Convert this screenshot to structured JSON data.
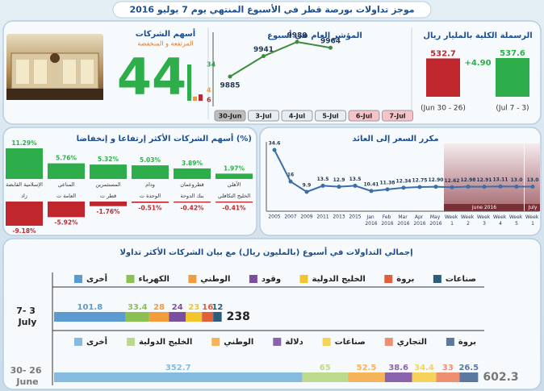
{
  "title": "موجز تداولات بورصة قطر في الأسبوع المنتهي يوم 7 يوليو 2016",
  "chart_data": [
    {
      "type": "bar",
      "title": "الرسملة الكلية بالمليار ريال",
      "categories": [
        "(Jun 30 - 26)",
        "(Jul 7 - 3)"
      ],
      "values": [
        532.7,
        537.6
      ],
      "colors": [
        "#c0272d",
        "#2eae4a"
      ],
      "annotation": "+4.90"
    },
    {
      "type": "line",
      "title": "المؤشر العام في أسبوع",
      "categories": [
        "30-Jun",
        "3-Jul",
        "4-Jul",
        "5-Jul",
        "6-Jul",
        "7-Jul"
      ],
      "values": [
        9885,
        9941,
        9980,
        9964,
        null,
        null
      ],
      "color": "#3c8c3c",
      "category_colors": [
        "#bdbdbd",
        "#e6edf3",
        "#e6edf3",
        "#e6edf3",
        "#f5c3c8",
        "#f5c3c8"
      ]
    },
    {
      "type": "counts",
      "title": "أسهم الشركات",
      "subtitle": "المرتفعة و المنخفضة",
      "total": 44,
      "values": [
        34,
        4,
        6
      ],
      "colors": [
        "#2eae4a",
        "#f29a2e",
        "#c0272d"
      ]
    },
    {
      "type": "bar",
      "title": "أسهم الشركات الأكثر إرتفاعا و إنخفاضا (%)",
      "categories": [
        "الإسلامية القابضة",
        "المناعي",
        "المستثمرين",
        "ودام",
        "قطروعمان",
        "الأهلي"
      ],
      "values": [
        11.29,
        5.76,
        5.32,
        5.03,
        3.89,
        1.97
      ],
      "value_labels": [
        "11.29%",
        "5.76%",
        "5.32%",
        "5.03%",
        "3.89%",
        "1.97%"
      ],
      "color": "#2eae4a"
    },
    {
      "type": "bar",
      "categories": [
        "زاد",
        "العامة ت",
        "قطر ت",
        "الوحدة ت",
        "بنك الدوحة",
        "الخليج التكافلي"
      ],
      "values": [
        -9.18,
        -5.92,
        -1.76,
        -0.51,
        -0.42,
        -0.41
      ],
      "value_labels": [
        "-9.18%",
        "-5.92%",
        "-1.76%",
        "-0.51%",
        "-0.42%",
        "-0.41%"
      ],
      "color": "#c0272d"
    },
    {
      "type": "line",
      "title": "مكرر السعر إلى العائد",
      "categories": [
        "2005",
        "2007",
        "2009",
        "2011",
        "2013",
        "2015",
        "Jan 2016",
        "Feb 2016",
        "Mar 2016",
        "Apr 2016",
        "May 2016",
        "Week 1",
        "Week 2",
        "Week 3",
        "Week 4",
        "Week 5",
        "Week 1"
      ],
      "values": [
        34.6,
        16,
        9.9,
        13.5,
        12.9,
        13.5,
        10.41,
        11.38,
        12.34,
        12.75,
        12.9,
        12.62,
        12.98,
        12.91,
        13.11,
        13.0,
        13.0
      ],
      "value_labels": [
        "34.6",
        "16",
        "9.9",
        "13.5",
        "12.9",
        "13.5",
        "10.41",
        "11.38",
        "12.34",
        "12.75",
        "12.90",
        "12.62",
        "12.98",
        "12.91",
        "13.11",
        "13.0",
        "13.0"
      ],
      "color": "#3a6fa8",
      "bands": [
        "June 2016",
        "July"
      ]
    },
    {
      "type": "stacked_bar",
      "title": "إجمالي التداولات في أسبوع (بالمليون ريال) مع بيان الشركات الأكثر تداولا",
      "categories": [
        "7- 3 July"
      ],
      "total": 238,
      "series": [
        {
          "name": "أخرى",
          "color": "#5b9bd0",
          "values": [
            101.8
          ]
        },
        {
          "name": "الكهرباء",
          "color": "#8cc152",
          "values": [
            33.4
          ]
        },
        {
          "name": "الوطني",
          "color": "#f39c3c",
          "values": [
            28
          ]
        },
        {
          "name": "وقود",
          "color": "#7b4fa0",
          "values": [
            24
          ]
        },
        {
          "name": "الخليج الدولية",
          "color": "#f2c52c",
          "values": [
            23
          ]
        },
        {
          "name": "بروة",
          "color": "#e0603a",
          "values": [
            16
          ]
        },
        {
          "name": "صناعات",
          "color": "#2d5d7b",
          "values": [
            12
          ]
        }
      ]
    },
    {
      "type": "stacked_bar",
      "categories": [
        "30- 26 June"
      ],
      "total": 602.3,
      "series": [
        {
          "name": "أخرى",
          "color": "#86bbe0",
          "values": [
            352.7
          ]
        },
        {
          "name": "الخليج الدولية",
          "color": "#bcd98c",
          "values": [
            65
          ]
        },
        {
          "name": "الوطني",
          "color": "#f5b35a",
          "values": [
            52.5
          ]
        },
        {
          "name": "دلالة",
          "color": "#8a62ad",
          "values": [
            38.6
          ]
        },
        {
          "name": "صناعات",
          "color": "#f5d35a",
          "values": [
            34.4
          ]
        },
        {
          "name": "التجاري",
          "color": "#ee9070",
          "values": [
            33
          ]
        },
        {
          "name": "بروة",
          "color": "#5a78a0",
          "values": [
            26.5
          ]
        }
      ]
    }
  ]
}
